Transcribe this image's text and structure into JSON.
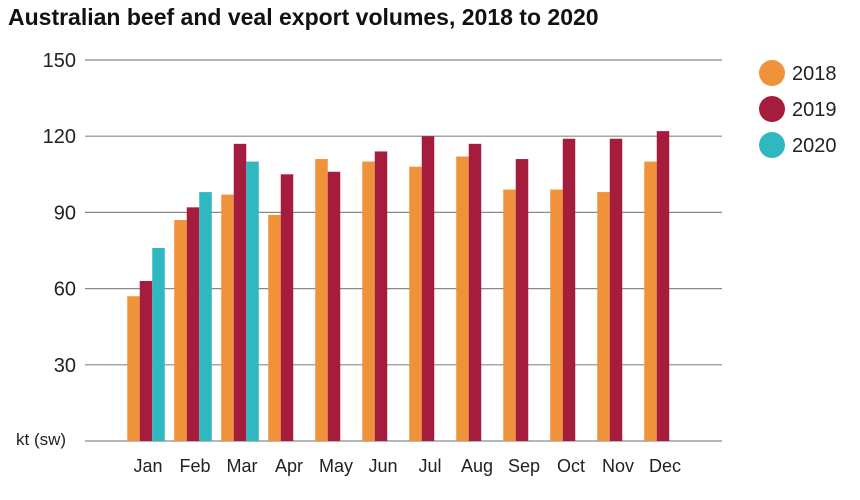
{
  "chart_data": {
    "type": "bar",
    "title": "Australian beef and veal export volumes, 2018 to 2020",
    "ylabel": "kt (sw)",
    "xlabel": "",
    "ylim": [
      0,
      150
    ],
    "yticks": [
      30,
      60,
      90,
      120,
      150
    ],
    "grid": true,
    "legend_position": "right",
    "categories": [
      "Jan",
      "Feb",
      "Mar",
      "Apr",
      "May",
      "Jun",
      "Jul",
      "Aug",
      "Sep",
      "Oct",
      "Nov",
      "Dec"
    ],
    "series": [
      {
        "name": "2018",
        "color": "#f0923a",
        "values": [
          57,
          87,
          97,
          89,
          111,
          110,
          108,
          112,
          99,
          99,
          98,
          110
        ]
      },
      {
        "name": "2019",
        "color": "#a51c3d",
        "values": [
          63,
          92,
          117,
          105,
          106,
          114,
          120,
          117,
          111,
          119,
          119,
          122
        ]
      },
      {
        "name": "2020",
        "color": "#2fb8bf",
        "values": [
          76,
          98,
          110,
          null,
          null,
          null,
          null,
          null,
          null,
          null,
          null,
          null
        ]
      }
    ]
  }
}
